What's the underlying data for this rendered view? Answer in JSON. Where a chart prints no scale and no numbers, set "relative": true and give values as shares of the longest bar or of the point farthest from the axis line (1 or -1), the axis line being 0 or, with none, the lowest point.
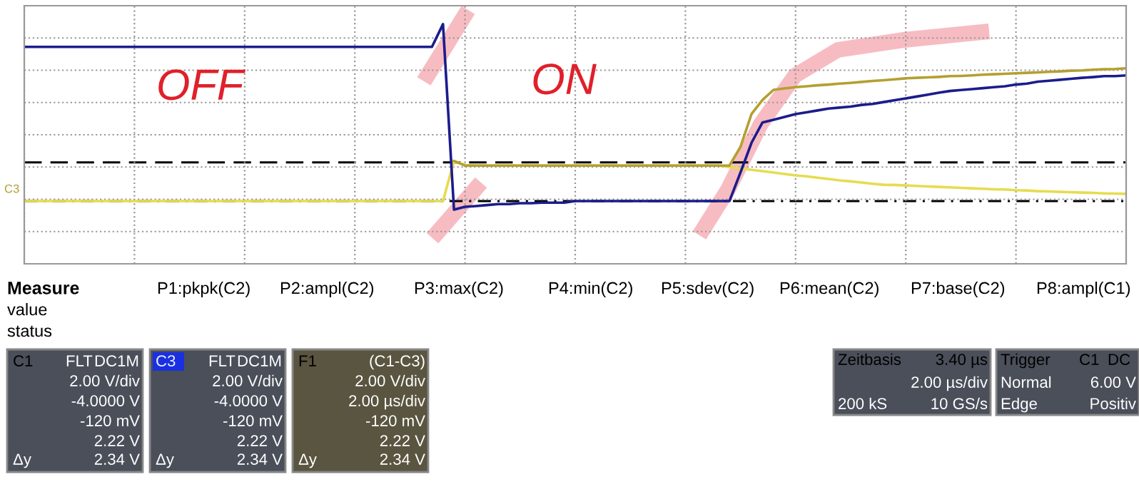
{
  "chart_data": {
    "type": "line",
    "relative": true,
    "grid": true,
    "tick_labels": false,
    "categories": [
      null,
      null,
      null,
      null,
      null,
      null,
      null,
      null,
      null,
      null,
      null,
      null,
      null,
      null,
      null,
      null,
      null,
      null,
      null,
      null,
      null,
      null,
      null,
      null,
      null,
      null,
      null,
      null,
      null,
      null,
      null,
      null,
      null,
      null,
      null,
      null,
      null,
      null,
      null,
      null,
      null,
      null,
      null,
      null,
      null,
      null,
      null,
      null,
      null,
      null,
      null,
      null,
      null,
      null,
      null,
      null,
      null,
      null,
      null,
      null,
      null,
      null,
      null,
      null,
      null,
      null,
      null,
      null,
      null,
      null,
      null,
      null,
      null,
      null,
      null,
      null,
      null,
      null,
      null,
      null,
      null,
      null,
      null,
      null,
      null,
      null,
      null,
      null,
      null,
      null,
      null,
      null,
      null,
      null,
      null,
      null,
      null,
      null,
      null,
      null,
      null
    ],
    "series": [
      {
        "color": "#e6dc50",
        "values": [
          0.262,
          0.262,
          0.262,
          0.262,
          0.262,
          0.262,
          0.262,
          0.262,
          0.262,
          0.262,
          0.262,
          0.262,
          0.262,
          0.262,
          0.262,
          0.262,
          0.262,
          0.262,
          0.262,
          0.262,
          0.262,
          0.262,
          0.262,
          0.262,
          0.262,
          0.262,
          0.262,
          0.262,
          0.262,
          0.262,
          0.262,
          0.262,
          0.262,
          0.262,
          0.262,
          0.262,
          0.262,
          0.262,
          0.262,
          0.429,
          0.412,
          0.41,
          0.41,
          0.41,
          0.41,
          0.41,
          0.41,
          0.41,
          0.41,
          0.41,
          0.41,
          0.41,
          0.41,
          0.41,
          0.41,
          0.41,
          0.41,
          0.41,
          0.41,
          0.41,
          0.41,
          0.41,
          0.41,
          0.41,
          0.404,
          0.398,
          0.392,
          0.387,
          0.381,
          0.375,
          0.369,
          0.365,
          0.359,
          0.354,
          0.348,
          0.344,
          0.339,
          0.334,
          0.33,
          0.329,
          0.327,
          0.325,
          0.323,
          0.321,
          0.319,
          0.317,
          0.315,
          0.313,
          0.311,
          0.31,
          0.307,
          0.306,
          0.303,
          0.302,
          0.3,
          0.299,
          0.297,
          0.296,
          0.294,
          0.293,
          0.292
        ]
      },
      {
        "color": "#b4a032",
        "values": [
          null,
          null,
          null,
          null,
          null,
          null,
          null,
          null,
          null,
          null,
          null,
          null,
          null,
          null,
          null,
          null,
          null,
          null,
          null,
          null,
          null,
          null,
          null,
          null,
          null,
          null,
          null,
          null,
          null,
          null,
          null,
          null,
          null,
          null,
          null,
          null,
          null,
          null,
          null,
          0.429,
          0.41,
          0.41,
          0.41,
          0.41,
          0.41,
          0.41,
          0.41,
          0.41,
          0.41,
          0.41,
          0.41,
          0.41,
          0.41,
          0.41,
          0.41,
          0.41,
          0.41,
          0.41,
          0.41,
          0.41,
          0.41,
          0.41,
          0.41,
          0.41,
          0.41,
          0.488,
          0.625,
          0.684,
          0.726,
          0.732,
          0.737,
          0.741,
          0.745,
          0.748,
          0.752,
          0.755,
          0.759,
          0.763,
          0.766,
          0.77,
          0.774,
          0.776,
          0.778,
          0.78,
          0.783,
          0.784,
          0.786,
          0.789,
          0.791,
          0.793,
          0.795,
          0.797,
          0.799,
          0.801,
          0.803,
          0.806,
          0.807,
          0.81,
          0.812,
          0.813,
          0.816
        ]
      },
      {
        "color": "#1c1c8c",
        "values": [
          0.905,
          0.905,
          0.905,
          0.905,
          0.905,
          0.905,
          0.905,
          0.905,
          0.905,
          0.905,
          0.905,
          0.905,
          0.905,
          0.905,
          0.905,
          0.905,
          0.905,
          0.905,
          0.905,
          0.905,
          0.905,
          0.905,
          0.905,
          0.905,
          0.905,
          0.905,
          0.905,
          0.905,
          0.905,
          0.905,
          0.905,
          0.905,
          0.905,
          0.905,
          0.905,
          0.905,
          0.905,
          0.905,
          1.0,
          0.226,
          0.238,
          0.241,
          0.245,
          0.249,
          0.249,
          0.253,
          0.253,
          0.255,
          0.255,
          0.255,
          0.262,
          0.262,
          0.262,
          0.262,
          0.262,
          0.262,
          0.262,
          0.262,
          0.262,
          0.262,
          0.262,
          0.262,
          0.262,
          0.262,
          0.262,
          0.381,
          0.505,
          0.59,
          0.601,
          0.613,
          0.625,
          0.632,
          0.64,
          0.648,
          0.652,
          0.656,
          0.663,
          0.667,
          0.675,
          0.683,
          0.69,
          0.698,
          0.706,
          0.714,
          0.721,
          0.725,
          0.729,
          0.733,
          0.737,
          0.741,
          0.748,
          0.752,
          0.76,
          0.764,
          0.768,
          0.772,
          0.776,
          0.779,
          0.783,
          0.783,
          0.786
        ]
      }
    ],
    "ref_lines": [
      {
        "axis": "y",
        "value": 0.423,
        "color": "#000000",
        "line_style": "dashed"
      },
      {
        "axis": "y",
        "value": 0.262,
        "color": "#000000",
        "line_style": "dashdot"
      }
    ],
    "annotations": [
      "OFF",
      "ON",
      "C3",
      "Measure",
      "P1:pkpk(C2)",
      "P2:ampl(C2)",
      "P3:max(C2)",
      "P4:min(C2)",
      "P5:sdev(C2)",
      "P6:mean(C2)",
      "P7:base(C2)",
      "P8:ampl(C1)",
      "value",
      "status",
      "C1",
      "FLT",
      "DC1M",
      "2.00 V/div",
      "-4.0000 V",
      "-120 mV",
      "2.22 V",
      "Δy",
      "2.34 V",
      "C3",
      "FLT",
      "DC1M",
      "2.00 V/div",
      "-4.0000 V",
      "-120 mV",
      "2.22 V",
      "Δy",
      "2.34 V",
      "F1",
      "(C1-C3)",
      "2.00 V/div",
      "2.00 µs/div",
      "-120 mV",
      "2.22 V",
      "Δy",
      "2.34 V",
      "Zeitbasis",
      "3.40 µs",
      "2.00 µs/div",
      "200 kS",
      "10 GS/s",
      "Trigger",
      "C1",
      "DC",
      "Normal",
      "6.00 V",
      "Edge",
      "Positiv"
    ]
  }
}
